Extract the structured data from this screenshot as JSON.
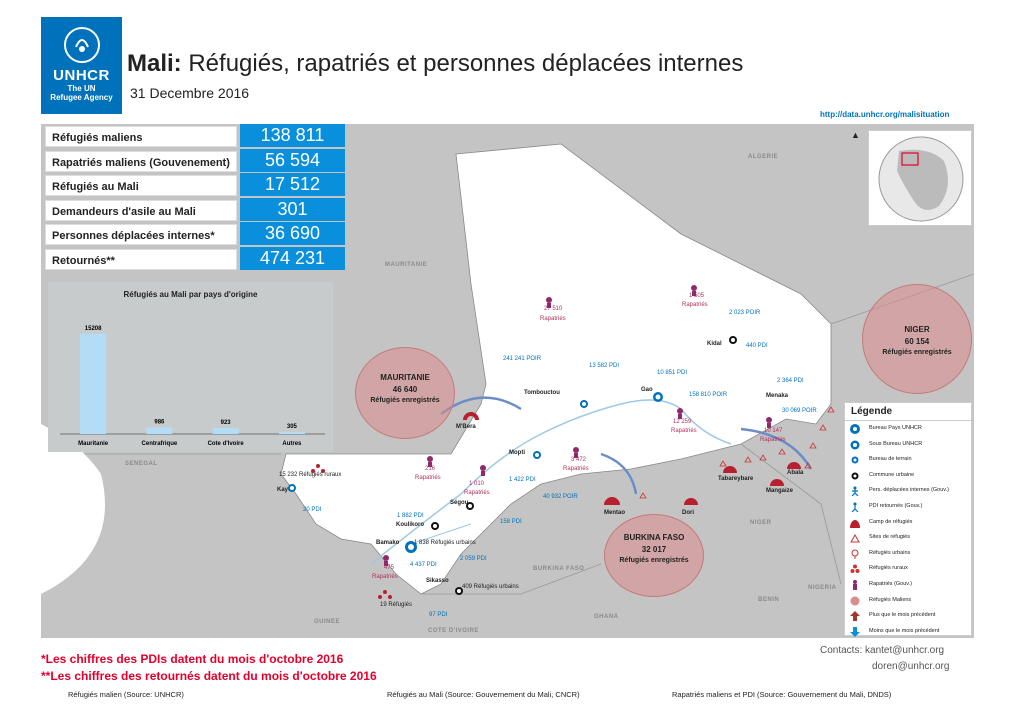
{
  "header": {
    "logo_name": "UNHCR",
    "logo_sub1": "The UN",
    "logo_sub2": "Refugee Agency",
    "title_bold": "Mali:",
    "title_rest": "Réfugiés, rapatriés et personnes déplacées internes",
    "date": "31 Decembre 2016",
    "url": "http://data.unhcr.org/malisituation"
  },
  "stats": [
    {
      "label": "Réfugiés maliens",
      "value": "138 811"
    },
    {
      "label": "Rapatriés maliens (Gouvenement)",
      "value": "56 594"
    },
    {
      "label": "Réfugiés au Mali",
      "value": "17 512"
    },
    {
      "label": "Demandeurs d'asile au Mali",
      "value": "301"
    },
    {
      "label": "Personnes déplacées internes*",
      "value": "36 690"
    },
    {
      "label": "Retournés**",
      "value": "474 231"
    }
  ],
  "chart_data": {
    "type": "bar",
    "title": "Réfugiés au Mali par pays d'origine",
    "categories": [
      "Mauritanie",
      "Centrafrique",
      "Cote d'Ivoire",
      "Autres"
    ],
    "values": [
      15208,
      986,
      923,
      305
    ],
    "value_labels": [
      "15208",
      "986",
      "923",
      "305"
    ],
    "ylim": [
      0,
      17000
    ],
    "color": "#b3dcf7"
  },
  "bubbles": [
    {
      "country": "MAURITANIE",
      "value": "46 640",
      "caption": "Réfugiés enregistrés"
    },
    {
      "country": "NIGER",
      "value": "60 154",
      "caption": "Réfugiés enregistrés"
    },
    {
      "country": "BURKINA FASO",
      "value": "32 017",
      "caption": "Réfugiés enregistrés"
    }
  ],
  "map_labels": {
    "countries": [
      "ALGERIE",
      "MAURITANIE",
      "SENEGAL",
      "GUINEE",
      "COTE D'IVOIRE",
      "GHANA",
      "BURKINA FASO",
      "NIGER",
      "BENIN",
      "NIGERIA"
    ],
    "towns": [
      "Kidal",
      "Tombouctou",
      "Gao",
      "Menaka",
      "Mopti",
      "Ségou",
      "Kayes",
      "Koulikoro",
      "Bamako",
      "Sikasso",
      "M'Bera",
      "Mentao",
      "Dori",
      "Tabareybare",
      "Abala",
      "Mangaize"
    ],
    "idp": [
      "241 241 POIR",
      "13 582 PDI",
      "10 851 PDI",
      "158 810 POIR",
      "2 023 POIR",
      "440 PDI",
      "2 364 PDI",
      "30 069 POIR",
      "1 422 PDI",
      "40 932 POIR",
      "1 882 PDI",
      "158 PDI",
      "2 059 PDI",
      "4 437 PDI",
      "97 PDI",
      "20 PDI"
    ],
    "repatries": [
      "27 510",
      "1 505",
      "3 472",
      "12 259",
      "10 147",
      "216",
      "1 010",
      "475"
    ],
    "repatries_caption": "Rapatriés",
    "urban_a": "1 838 Réfugiés urbains",
    "urban_b": "409 Réfugiés urbains",
    "rural": "15 232 Réfugiés ruraux",
    "sikasso_ref": "19 Réfugiés"
  },
  "legend": {
    "title": "Légende",
    "items": [
      "Bureau Pays UNHCR",
      "Sous Bureau UNHCR",
      "Bureau de terrain",
      "Commune urbaine",
      "Pers. déplacées internes (Gouv.)",
      "PDI retournés (Gouv.)",
      "Camp de réfugiés",
      "Sites de réfugiés",
      "Réfugiés urbains",
      "Réfugiés ruraux",
      "Rapatriés (Gouv.)",
      "Réfugiés Maliens",
      "Plus que le mois précédent",
      "Moins que le mois précédent"
    ]
  },
  "footer": {
    "note1": "*Les chiffres des PDIs datent du mois d'octobre 2016",
    "note2": "**Les chiffres des retournés datent du mois d'octobre 2016",
    "contacts1": "Contacts: kantet@unhcr.org",
    "contacts2": "doren@unhcr.org",
    "source1": "Réfugiés malien (Source: UNHCR)",
    "source2": "Réfugiés au Mali (Source: Gouvernement du Mali, CNCR)",
    "source3": "Rapatriés maliens et PDI (Source: Gouvernement du Mali, DNDS)"
  },
  "colors": {
    "unhcr_blue": "#0072bc",
    "stat_blue": "#0a8fdc",
    "bubble": "#dc8c8c",
    "alert_red": "#e4002b"
  }
}
